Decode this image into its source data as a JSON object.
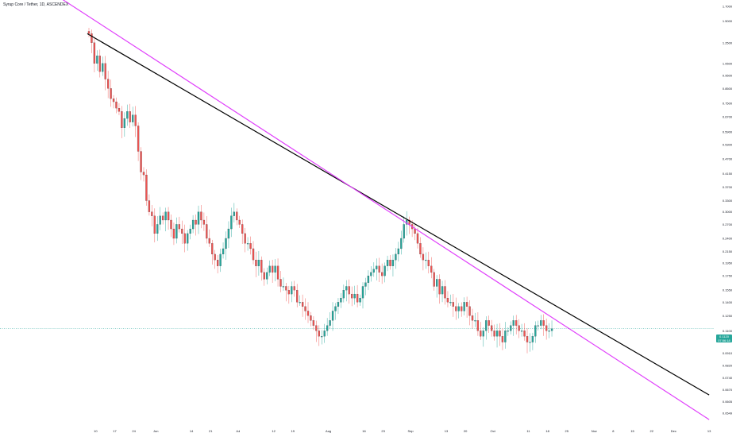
{
  "header": {
    "title": "Syrup Core / Tether, 1D, ASCENDEX"
  },
  "price_label": {
    "price": "0.1120",
    "time": "07:56:18"
  },
  "colors": {
    "up": "#26a69a",
    "down": "#ef5350",
    "trendline_black": "#000000",
    "trendline_magenta": "#e040fb",
    "price_line": "#26a69a"
  },
  "chart_data": {
    "type": "candlestick",
    "title": "Syrup Core / Tether, 1D, ASCENDEX",
    "y_axis": {
      "scale": "log",
      "unit": "USDT",
      "ticks": [
        "1.7000",
        "1.5000",
        "1.2500",
        "1.0500",
        "0.9500",
        "0.8500",
        "0.7500",
        "0.6700",
        "0.5900",
        "0.5300",
        "0.4700",
        "0.4150",
        "0.3700",
        "0.3300",
        "0.3000",
        "0.2700",
        "0.2400",
        "0.2150",
        "0.1950",
        "0.1750",
        "0.1550",
        "0.1400",
        "0.1250",
        "0.1100",
        "0.1010",
        "0.0910",
        "0.0820",
        "0.0740",
        "0.0670",
        "0.0605",
        "0.0549"
      ]
    },
    "x_axis": {
      "ticks": [
        "10",
        "17",
        "24",
        "Jun",
        "14",
        "21",
        "Jul",
        "12",
        "19",
        "Aug",
        "16",
        "23",
        "Sep",
        "13",
        "20",
        "Oct",
        "11",
        "18",
        "25",
        "Nov",
        "8",
        "15",
        "22",
        "Dec",
        "13"
      ]
    },
    "last_price": 0.112,
    "ohlc_approx": [
      1.35,
      1.25,
      1.05,
      1.12,
      0.98,
      1.05,
      0.92,
      0.85,
      0.78,
      0.76,
      0.72,
      0.7,
      0.61,
      0.66,
      0.7,
      0.64,
      0.68,
      0.62,
      0.5,
      0.42,
      0.41,
      0.33,
      0.3,
      0.29,
      0.25,
      0.27,
      0.29,
      0.28,
      0.3,
      0.28,
      0.26,
      0.24,
      0.27,
      0.26,
      0.25,
      0.23,
      0.25,
      0.26,
      0.28,
      0.27,
      0.3,
      0.28,
      0.27,
      0.24,
      0.23,
      0.21,
      0.2,
      0.19,
      0.21,
      0.22,
      0.24,
      0.26,
      0.29,
      0.3,
      0.28,
      0.27,
      0.25,
      0.23,
      0.23,
      0.22,
      0.2,
      0.19,
      0.2,
      0.18,
      0.17,
      0.18,
      0.19,
      0.18,
      0.19,
      0.17,
      0.16,
      0.16,
      0.155,
      0.15,
      0.16,
      0.155,
      0.14,
      0.14,
      0.135,
      0.13,
      0.125,
      0.12,
      0.115,
      0.11,
      0.105,
      0.105,
      0.11,
      0.115,
      0.12,
      0.13,
      0.135,
      0.14,
      0.145,
      0.155,
      0.16,
      0.15,
      0.145,
      0.15,
      0.14,
      0.145,
      0.16,
      0.165,
      0.175,
      0.18,
      0.185,
      0.19,
      0.18,
      0.175,
      0.19,
      0.2,
      0.19,
      0.2,
      0.21,
      0.22,
      0.24,
      0.27,
      0.28,
      0.27,
      0.26,
      0.25,
      0.23,
      0.21,
      0.2,
      0.2,
      0.19,
      0.18,
      0.16,
      0.17,
      0.15,
      0.16,
      0.145,
      0.14,
      0.14,
      0.135,
      0.13,
      0.135,
      0.13,
      0.14,
      0.135,
      0.125,
      0.12,
      0.12,
      0.11,
      0.105,
      0.11,
      0.12,
      0.115,
      0.11,
      0.105,
      0.11,
      0.105,
      0.1,
      0.11,
      0.11,
      0.115,
      0.12,
      0.115,
      0.11,
      0.11,
      0.105,
      0.1,
      0.1,
      0.105,
      0.115,
      0.115,
      0.12,
      0.115,
      0.11,
      0.11,
      0.112
    ],
    "trendlines": [
      {
        "color": "black",
        "from": {
          "date": "May 7",
          "price": 1.35
        },
        "to": {
          "date": "Dec 13",
          "price": 0.064
        }
      },
      {
        "color": "magenta",
        "from": {
          "date": "Apr 28",
          "price": 1.8
        },
        "to": {
          "date": "Dec 13",
          "price": 0.052
        }
      }
    ]
  }
}
